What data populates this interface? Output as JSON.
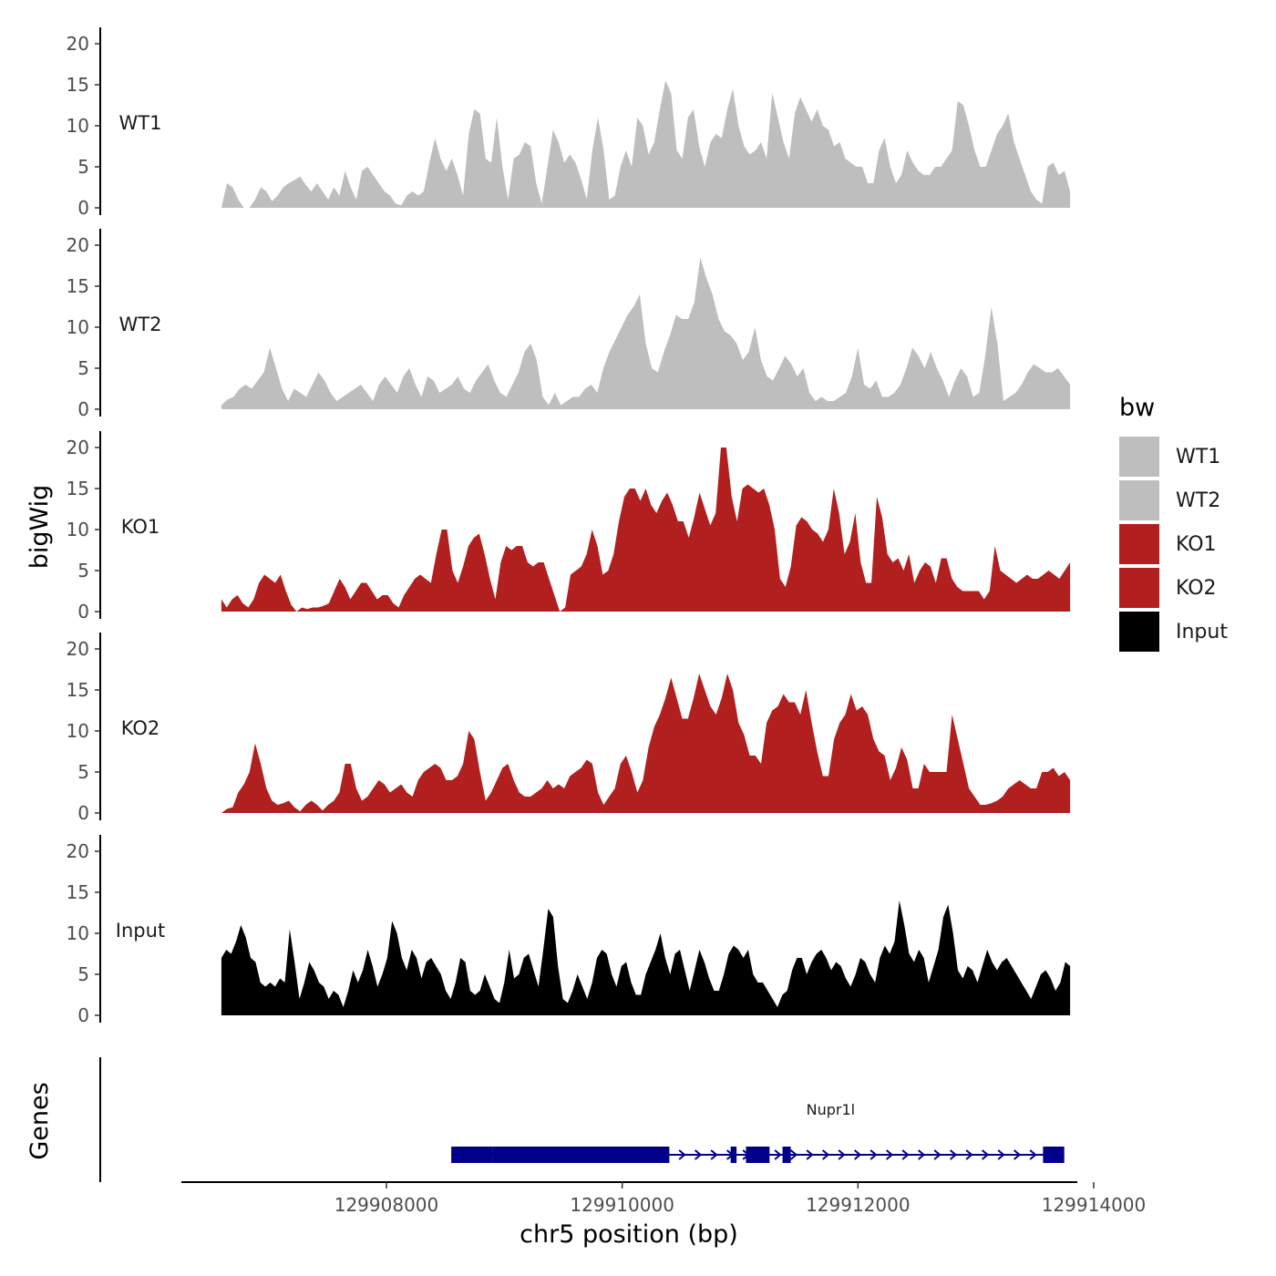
{
  "chart_data": {
    "type": "area",
    "ylabel": "bigWig",
    "xlabel": "chr5 position (bp)",
    "genes_panel_label": "Genes",
    "x_range": [
      129906600,
      129913800
    ],
    "xlim": [
      129906000,
      129914100
    ],
    "ylim": [
      0,
      20
    ],
    "y_ticks": [
      0,
      5,
      10,
      15,
      20
    ],
    "x_ticks": [
      129908000,
      129910000,
      129912000,
      129914000
    ],
    "x_tick_labels": [
      "129908000",
      "129910000",
      "129912000",
      "129914000"
    ],
    "legend": {
      "title": "bw",
      "position": "right",
      "items": [
        {
          "label": "WT1",
          "color": "#bebebe"
        },
        {
          "label": "WT2",
          "color": "#bebebe"
        },
        {
          "label": "KO1",
          "color": "#b21f1f"
        },
        {
          "label": "KO2",
          "color": "#b21f1f"
        },
        {
          "label": "Input",
          "color": "#000000"
        }
      ]
    },
    "series": [
      {
        "name": "WT1",
        "color": "#bebebe",
        "values": [
          0,
          3,
          2.5,
          1,
          0,
          0,
          1,
          2.5,
          2,
          0.8,
          1.5,
          2.5,
          3,
          3.4,
          3.8,
          2.8,
          2,
          3,
          2,
          1,
          2.5,
          1.5,
          4.5,
          2.5,
          1,
          4.5,
          5,
          4,
          3,
          2,
          1.5,
          0.5,
          0.3,
          1.5,
          2,
          1.5,
          2,
          5.5,
          8.5,
          6,
          4.5,
          6,
          4,
          1.5,
          9,
          12,
          11.5,
          6,
          5.5,
          11,
          5,
          1,
          6,
          6.5,
          8,
          7.5,
          3,
          0.5,
          5,
          9.5,
          8,
          5.5,
          6.5,
          5.5,
          3.5,
          1,
          7,
          11,
          7,
          1,
          1.5,
          5,
          7,
          5,
          11,
          10,
          6.5,
          8,
          12,
          15.5,
          14,
          7,
          6,
          11,
          12,
          7.5,
          5,
          8,
          9,
          8.5,
          12,
          14.5,
          10,
          7.5,
          6.5,
          7,
          8,
          6,
          14,
          11,
          8,
          6,
          11.5,
          13.5,
          12,
          10.5,
          12,
          10,
          9.5,
          7.5,
          8,
          6,
          5.5,
          5,
          5,
          3,
          3,
          7,
          8.5,
          5,
          3,
          4,
          7,
          5.5,
          4.5,
          4,
          4,
          5,
          5,
          6,
          7,
          13,
          12.5,
          10,
          7,
          5,
          5,
          7,
          9,
          10,
          11.5,
          8,
          6,
          4,
          2,
          1,
          0.5,
          5,
          5.5,
          4,
          4.5,
          2
        ]
      },
      {
        "name": "WT2",
        "color": "#bebebe",
        "values": [
          0.5,
          1.2,
          1.5,
          2.5,
          3,
          2.5,
          3.5,
          4.5,
          7.5,
          5,
          2.5,
          1,
          2.5,
          2,
          1.5,
          3,
          4.5,
          3.5,
          2,
          1,
          1.5,
          2,
          2.5,
          3,
          2,
          1,
          3,
          4,
          3,
          2,
          4,
          5,
          3,
          1.5,
          4,
          3.5,
          2,
          2.5,
          3,
          4,
          2.5,
          2,
          3.5,
          4.5,
          5.5,
          3.5,
          2,
          1.5,
          3,
          4.5,
          7,
          8,
          6,
          1.5,
          0.5,
          2,
          0.5,
          1,
          1.5,
          1.5,
          2.5,
          3,
          2,
          5,
          7,
          8.5,
          10,
          11.5,
          12.5,
          14,
          8,
          5,
          4.5,
          7,
          9,
          11.5,
          11,
          11,
          13,
          18.5,
          16,
          14,
          11,
          9.5,
          9,
          8,
          6,
          7,
          10,
          6,
          4,
          3.5,
          5,
          6.5,
          5.5,
          4,
          5,
          2,
          1,
          1.5,
          1,
          1,
          1.5,
          2,
          4,
          7.5,
          3,
          2.5,
          3.5,
          1.5,
          1.5,
          2,
          3,
          5,
          7.5,
          6.5,
          5,
          7,
          5,
          3.5,
          1.5,
          3.5,
          5,
          4,
          1.5,
          2,
          6.5,
          12.5,
          8,
          1,
          1.5,
          2,
          3,
          4.5,
          5.5,
          5,
          4.5,
          4.5,
          5,
          4,
          3
        ]
      },
      {
        "name": "KO1",
        "color": "#b21f1f",
        "values": [
          1.5,
          0.5,
          1.5,
          2,
          1,
          0.5,
          1.5,
          3.5,
          4.5,
          4,
          3.5,
          4.5,
          2.5,
          0.8,
          0,
          0.5,
          0.3,
          0.5,
          0.5,
          0.7,
          1,
          2.5,
          4,
          3,
          1.5,
          2.5,
          3.5,
          3.5,
          2.5,
          1.5,
          2,
          2,
          1,
          0.5,
          2,
          3,
          4,
          4.5,
          4,
          3.5,
          7,
          10,
          10,
          5,
          3.5,
          5.5,
          8,
          9,
          9.5,
          7,
          4,
          1.5,
          6,
          8,
          7.5,
          8,
          8,
          6,
          5.5,
          6,
          6,
          4,
          2,
          0,
          0.5,
          4.5,
          5,
          5.5,
          7,
          10,
          8,
          4.5,
          5,
          7,
          11,
          14,
          15,
          15,
          13.5,
          15,
          13,
          12,
          13.5,
          14.5,
          13,
          11,
          11,
          9,
          11.5,
          14.5,
          12.5,
          10.5,
          12,
          20.5,
          20,
          14,
          11,
          15,
          15.5,
          15,
          14.5,
          15,
          13,
          10,
          4,
          3,
          5.5,
          10.5,
          11.5,
          11,
          10,
          9.5,
          8.5,
          10,
          15,
          12,
          7,
          8.5,
          12,
          6,
          3.5,
          3.5,
          14,
          11.5,
          7,
          6,
          6.5,
          5,
          7,
          3.5,
          5,
          6,
          5.5,
          3.5,
          6.5,
          6.5,
          4,
          3,
          2.5,
          2.5,
          2.5,
          2.5,
          1.5,
          2.5,
          8,
          5,
          4.5,
          4,
          3.5,
          4,
          4.5,
          4,
          4,
          4.5,
          5,
          4.5,
          4,
          5,
          6
        ]
      },
      {
        "name": "KO2",
        "color": "#b21f1f",
        "values": [
          0,
          0.5,
          0.7,
          2.5,
          3.5,
          5,
          8.5,
          6,
          3,
          1.5,
          1,
          1.2,
          1.5,
          0.7,
          0.2,
          1,
          1.5,
          1,
          0.3,
          1,
          1.5,
          2.5,
          6,
          6,
          3,
          1.5,
          2,
          3,
          4,
          3.5,
          2.5,
          3,
          3.5,
          2.5,
          2,
          4,
          5,
          5.5,
          6,
          5.5,
          4,
          4,
          4.5,
          6,
          10,
          9,
          5,
          1.5,
          2.5,
          4,
          5.5,
          6,
          4,
          2.5,
          2,
          2,
          2.5,
          3,
          4,
          3,
          3.5,
          3,
          4.5,
          5,
          5.5,
          6.5,
          6,
          2.5,
          1,
          2,
          3,
          6,
          7,
          5,
          2.5,
          4,
          8,
          10.5,
          12,
          14,
          16.5,
          14,
          11.5,
          11.5,
          14,
          17,
          15,
          13,
          12,
          14,
          17,
          15,
          11,
          9.5,
          7,
          7,
          6,
          11,
          12.5,
          13,
          14.5,
          13.5,
          13.5,
          12,
          15,
          11,
          7.5,
          4.5,
          4.5,
          9,
          11,
          12,
          14.5,
          12.5,
          13,
          12,
          9,
          7.5,
          7,
          4,
          5.5,
          8,
          6.5,
          3,
          3,
          6,
          5,
          5,
          5,
          5,
          12,
          9,
          6,
          3,
          2,
          1,
          1,
          1.2,
          1.5,
          2,
          3,
          3.5,
          4,
          3.5,
          3,
          3,
          5,
          5,
          5.5,
          4.5,
          5,
          4
        ]
      },
      {
        "name": "Input",
        "color": "#000000",
        "values": [
          7,
          8,
          7.5,
          9,
          11,
          9.5,
          7,
          6.5,
          4,
          3.5,
          4,
          3.5,
          4.5,
          4,
          10.5,
          6.5,
          2,
          4,
          6.5,
          5.5,
          4,
          3.5,
          2,
          3,
          2.5,
          1,
          3,
          5.5,
          4,
          5.5,
          8,
          6,
          3.5,
          5,
          7,
          11.5,
          10,
          7,
          5.5,
          8,
          7,
          4.5,
          6.5,
          7,
          6,
          5,
          3,
          2,
          4,
          7,
          6.5,
          3,
          2.5,
          3,
          5,
          3.5,
          2,
          1.5,
          4,
          8,
          4.5,
          5,
          7,
          7.5,
          5.5,
          3.5,
          8,
          13,
          12,
          6,
          2,
          1.5,
          3,
          5,
          3.5,
          2,
          4,
          7,
          8,
          7.5,
          5,
          3.5,
          6,
          6.5,
          4,
          2.5,
          2.5,
          5,
          6.5,
          8,
          10,
          7,
          5,
          7.5,
          8,
          5.5,
          3,
          5.5,
          8,
          6.5,
          4.5,
          3,
          3,
          5,
          7.5,
          8.5,
          8,
          7,
          8,
          5,
          4,
          4,
          3,
          2,
          1,
          2.5,
          3,
          5.5,
          7,
          7,
          5,
          6.5,
          7.5,
          8,
          7,
          5.5,
          6.5,
          6,
          4.5,
          3.5,
          5,
          7,
          6.5,
          5,
          4,
          7,
          8.5,
          7.5,
          9,
          14,
          11,
          7.5,
          6.5,
          8,
          7,
          4,
          6,
          8,
          12,
          13.5,
          10,
          5.5,
          4.5,
          6,
          5.5,
          4,
          6,
          8,
          6.5,
          5.5,
          6.5,
          7,
          6,
          5,
          4,
          3,
          2,
          3.5,
          5,
          5.5,
          4.5,
          3,
          4,
          6.5,
          6
        ]
      }
    ],
    "genes": [
      {
        "name": "Nupr1l",
        "start": 129908550,
        "end": 129913750,
        "strand": "+",
        "exons": [
          {
            "start": 129908550,
            "end": 129908900,
            "thick": true
          },
          {
            "start": 129908900,
            "end": 129910400,
            "thick": true
          },
          {
            "start": 129910920,
            "end": 129910970,
            "thick": true
          },
          {
            "start": 129911050,
            "end": 129911250,
            "thick": true
          },
          {
            "start": 129911360,
            "end": 129911430,
            "thick": true
          },
          {
            "start": 129913570,
            "end": 129913750,
            "thick": true
          }
        ]
      }
    ]
  }
}
